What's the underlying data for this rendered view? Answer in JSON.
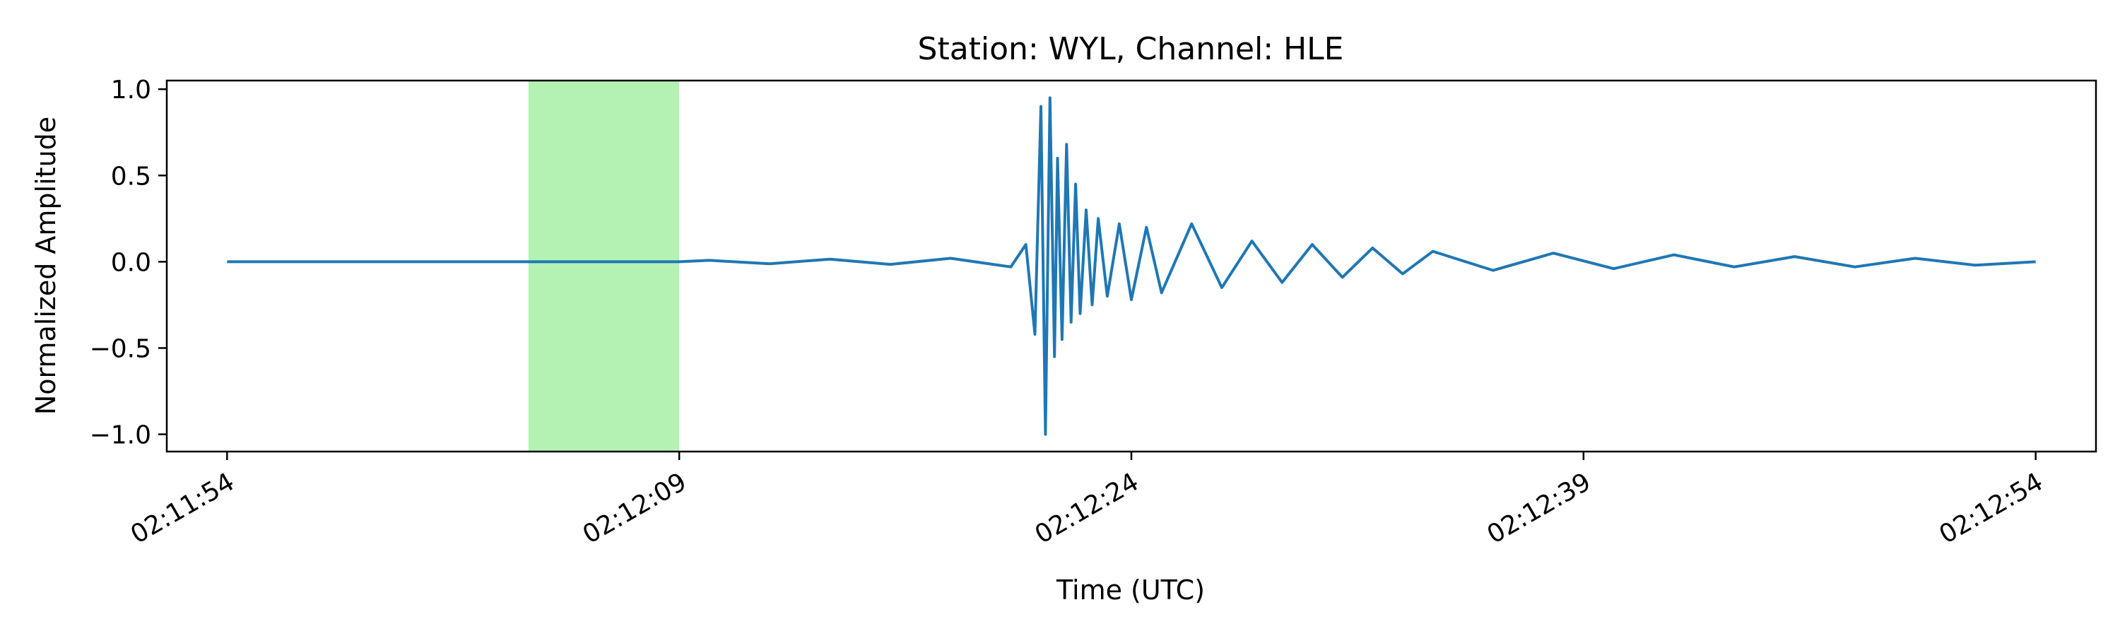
{
  "chart_data": {
    "type": "line",
    "title": "Station: WYL, Channel: HLE",
    "xlabel": "Time (UTC)",
    "ylabel": "Normalized Amplitude",
    "x_range_seconds": [
      -2,
      62
    ],
    "xlim": [
      "02:11:52",
      "02:12:56"
    ],
    "ylim": [
      -1.1,
      1.05
    ],
    "x_ticks": [
      {
        "t": 0,
        "label": "02:11:54"
      },
      {
        "t": 15,
        "label": "02:12:09"
      },
      {
        "t": 30,
        "label": "02:12:24"
      },
      {
        "t": 45,
        "label": "02:12:39"
      },
      {
        "t": 60,
        "label": "02:12:54"
      }
    ],
    "y_ticks": [
      {
        "v": 1.0,
        "label": "1.0"
      },
      {
        "v": 0.5,
        "label": "0.5"
      },
      {
        "v": 0.0,
        "label": "0.0"
      },
      {
        "v": -0.5,
        "label": "−0.5"
      },
      {
        "v": -1.0,
        "label": "−1.0"
      }
    ],
    "highlight_span": {
      "start": "02:12:04",
      "end": "02:12:09",
      "color": "#b3f2b3"
    },
    "line_color": "#1f77b4",
    "grid": false,
    "series": [
      {
        "x": [
          "02:11:54",
          "02:12:03",
          "02:12:09",
          "02:12:10",
          "02:12:12",
          "02:12:14",
          "02:12:16",
          "02:12:18",
          "02:12:20",
          "02:12:20.5",
          "02:12:20.8",
          "02:12:21",
          "02:12:21.15",
          "02:12:21.3",
          "02:12:21.45",
          "02:12:21.55",
          "02:12:21.7",
          "02:12:21.85",
          "02:12:22",
          "02:12:22.15",
          "02:12:22.3",
          "02:12:22.5",
          "02:12:22.7",
          "02:12:22.9",
          "02:12:23.2",
          "02:12:23.6",
          "02:12:24",
          "02:12:24.5",
          "02:12:25",
          "02:12:26",
          "02:12:27",
          "02:12:28",
          "02:12:29",
          "02:12:30",
          "02:12:31",
          "02:12:32",
          "02:12:33",
          "02:12:34",
          "02:12:36",
          "02:12:38",
          "02:12:40",
          "02:12:42",
          "02:12:44",
          "02:12:46",
          "02:12:48",
          "02:12:50",
          "02:12:52",
          "02:12:54"
        ],
        "y": [
          0.0,
          0.0,
          0.0,
          0.008,
          -0.012,
          0.015,
          -0.015,
          0.02,
          -0.03,
          0.1,
          -0.42,
          0.9,
          -1.0,
          0.95,
          -0.55,
          0.6,
          -0.45,
          0.68,
          -0.35,
          0.45,
          -0.3,
          0.3,
          -0.25,
          0.25,
          -0.2,
          0.22,
          -0.22,
          0.2,
          -0.18,
          0.22,
          -0.15,
          0.12,
          -0.12,
          0.1,
          -0.09,
          0.08,
          -0.07,
          0.06,
          -0.05,
          0.05,
          -0.04,
          0.04,
          -0.03,
          0.03,
          -0.03,
          0.02,
          -0.02,
          0.0
        ]
      }
    ]
  }
}
